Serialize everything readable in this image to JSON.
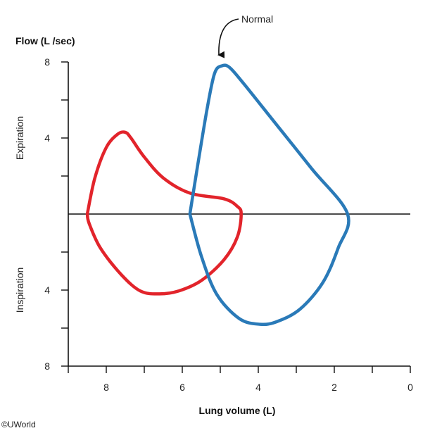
{
  "chart_data": {
    "type": "line",
    "title": "",
    "ylabel": "Flow (L /sec)",
    "ylabel_expiration": "Expiration",
    "ylabel_inspiration": "Inspiration",
    "xlabel": "Lung volume (L)",
    "x_reversed": true,
    "xlim": [
      0,
      9
    ],
    "ylim": [
      -8,
      8
    ],
    "x_ticks": [
      8,
      6,
      4,
      2,
      0
    ],
    "y_ticks": [
      {
        "value": 8,
        "label": "8"
      },
      {
        "value": 4,
        "label": "4"
      },
      {
        "value": -4,
        "label": "4"
      },
      {
        "value": -8,
        "label": "8"
      }
    ],
    "y_minor_ticks": [
      6,
      2,
      -2,
      -6
    ],
    "x_minor_ticks": [
      9,
      7,
      5,
      3,
      1
    ],
    "grid": false,
    "annotation": {
      "text": "Normal",
      "points_to": {
        "x": 5.0,
        "y": 7.6
      }
    },
    "series": [
      {
        "name": "Normal",
        "color": "#2a7ab8",
        "points": [
          [
            5.8,
            0
          ],
          [
            5.6,
            2.5
          ],
          [
            5.35,
            5.5
          ],
          [
            5.15,
            7.4
          ],
          [
            4.95,
            7.8
          ],
          [
            4.75,
            7.7
          ],
          [
            4.4,
            6.9
          ],
          [
            3.6,
            4.9
          ],
          [
            2.6,
            2.4
          ],
          [
            1.65,
            0
          ],
          [
            1.9,
            -1.8
          ],
          [
            2.3,
            -3.6
          ],
          [
            2.9,
            -5.0
          ],
          [
            3.5,
            -5.65
          ],
          [
            3.95,
            -5.8
          ],
          [
            4.5,
            -5.5
          ],
          [
            5.1,
            -4.2
          ],
          [
            5.5,
            -2.2
          ],
          [
            5.8,
            0
          ]
        ]
      },
      {
        "name": "",
        "color": "#e2242b",
        "points": [
          [
            8.5,
            0
          ],
          [
            8.3,
            1.9
          ],
          [
            8.0,
            3.5
          ],
          [
            7.7,
            4.2
          ],
          [
            7.5,
            4.3
          ],
          [
            7.35,
            4.0
          ],
          [
            7.0,
            3.0
          ],
          [
            6.5,
            1.9
          ],
          [
            5.8,
            1.1
          ],
          [
            4.9,
            0.8
          ],
          [
            4.55,
            0.4
          ],
          [
            4.45,
            0
          ],
          [
            4.55,
            -1.2
          ],
          [
            4.9,
            -2.4
          ],
          [
            5.5,
            -3.5
          ],
          [
            6.1,
            -4.05
          ],
          [
            6.6,
            -4.2
          ],
          [
            7.1,
            -4.05
          ],
          [
            7.6,
            -3.2
          ],
          [
            8.15,
            -1.8
          ],
          [
            8.45,
            -0.5
          ],
          [
            8.5,
            0
          ]
        ]
      }
    ]
  },
  "copyright": "©UWorld"
}
